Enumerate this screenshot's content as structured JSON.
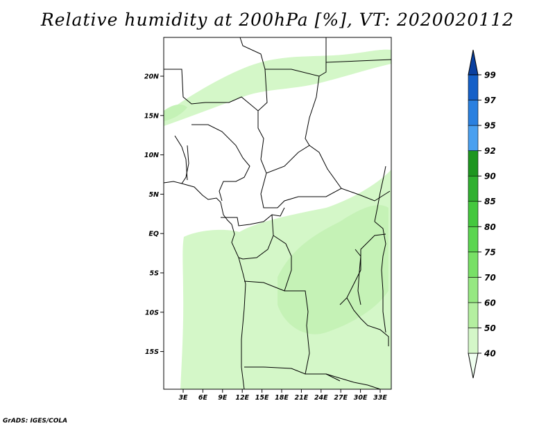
{
  "title": "Relative humidity at 200hPa [%], VT: 2020020112",
  "footer": "GrADS: IGES/COLA",
  "map": {
    "lat_ticks": [
      "20N",
      "15N",
      "10N",
      "5N",
      "EQ",
      "5S",
      "10S",
      "15S"
    ],
    "lon_ticks": [
      "3E",
      "6E",
      "9E",
      "12E",
      "15E",
      "18E",
      "21E",
      "24E",
      "27E",
      "30E",
      "33E"
    ]
  },
  "colorbar": {
    "levels": [
      "40",
      "50",
      "60",
      "70",
      "75",
      "80",
      "85",
      "90",
      "92",
      "95",
      "97",
      "99"
    ],
    "colors": [
      "#f0fff0",
      "#d4f7c8",
      "#b4efa0",
      "#96e882",
      "#78e066",
      "#5cd651",
      "#44c83e",
      "#30b030",
      "#1e9620",
      "#4aa0f0",
      "#2a80e0",
      "#1560c8",
      "#0a40a0"
    ]
  }
}
